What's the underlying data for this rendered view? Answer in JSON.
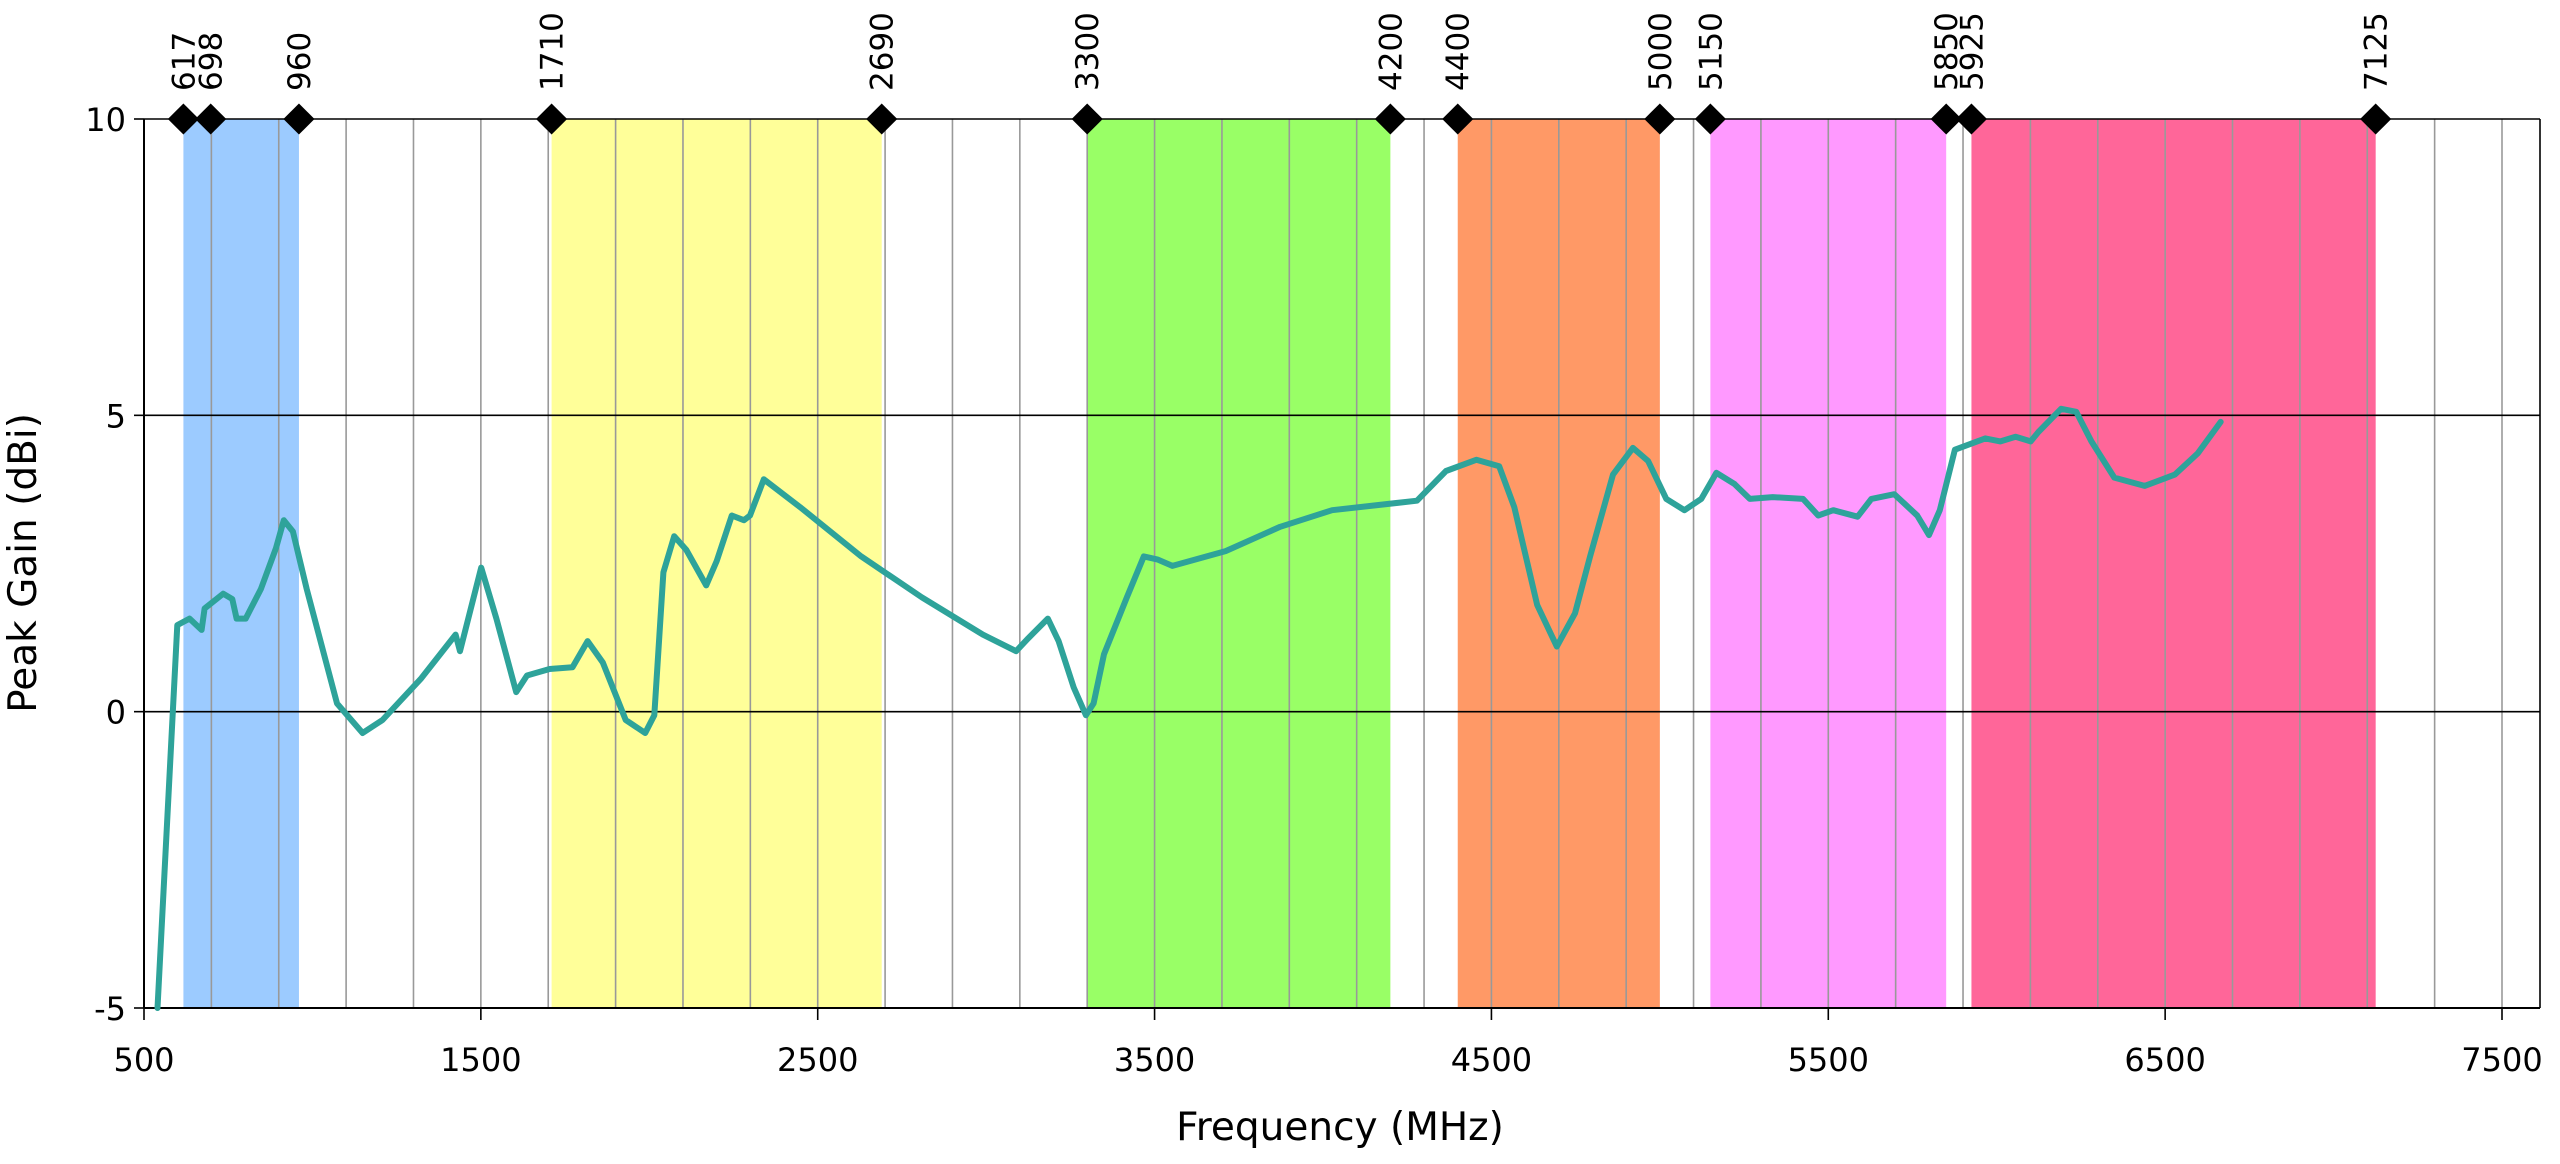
{
  "chart_data": {
    "type": "line",
    "xlabel": "Frequency (MHz)",
    "ylabel": "Peak Gain (dBi)",
    "xlim": [
      500,
      7500
    ],
    "xticks": [
      500,
      1500,
      2500,
      3500,
      4500,
      5500,
      6500,
      7500
    ],
    "ylim": [
      -5,
      10
    ],
    "yticks": [
      -5,
      0,
      5,
      10
    ],
    "grid": true,
    "x_minor_grid_step": 200,
    "bands": [
      {
        "start": 617,
        "end": 698,
        "color": "#9ccbff"
      },
      {
        "start": 698,
        "end": 960,
        "color": "#9ccbff"
      },
      {
        "start": 1710,
        "end": 2690,
        "color": "#ffff99"
      },
      {
        "start": 3300,
        "end": 4200,
        "color": "#99ff66"
      },
      {
        "start": 4400,
        "end": 5000,
        "color": "#ff9966"
      },
      {
        "start": 5150,
        "end": 5850,
        "color": "#ff99ff"
      },
      {
        "start": 5925,
        "end": 7125,
        "color": "#ff6699"
      }
    ],
    "x": [
      540,
      599,
      635,
      671,
      680,
      735,
      762,
      775,
      802,
      847,
      892,
      915,
      942,
      983,
      1073,
      1149,
      1208,
      1321,
      1425,
      1438,
      1501,
      1546,
      1605,
      1637,
      1704,
      1772,
      1817,
      1862,
      1930,
      1988,
      2015,
      2042,
      2074,
      2110,
      2169,
      2200,
      2245,
      2281,
      2299,
      2340,
      2448,
      2629,
      2809,
      2990,
      3089,
      3125,
      3183,
      3215,
      3260,
      3296,
      3319,
      3350,
      3418,
      3468,
      3508,
      3553,
      3711,
      3873,
      4027,
      4279,
      4365,
      4455,
      4523,
      4568,
      4636,
      4694,
      4748,
      4793,
      4861,
      4920,
      4965,
      5019,
      5073,
      5123,
      5168,
      5222,
      5267,
      5335,
      5425,
      5470,
      5515,
      5587,
      5628,
      5696,
      5764,
      5799,
      5831,
      5876,
      5966,
      6011,
      6056,
      6101,
      6124,
      6191,
      6236,
      6281,
      6349,
      6439,
      6529,
      6597,
      6665
    ],
    "series": [
      {
        "color": "#2ea39a",
        "values": [
          -5,
          1.46,
          1.57,
          1.38,
          1.74,
          1.99,
          1.9,
          1.57,
          1.57,
          2.07,
          2.76,
          3.23,
          3.04,
          2.07,
          0.14,
          -0.36,
          -0.14,
          0.55,
          1.3,
          1.02,
          2.43,
          1.57,
          0.33,
          0.61,
          0.72,
          0.75,
          1.19,
          0.83,
          -0.14,
          -0.36,
          -0.06,
          2.35,
          2.96,
          2.73,
          2.13,
          2.54,
          3.31,
          3.23,
          3.31,
          3.92,
          3.45,
          2.62,
          1.93,
          1.3,
          1.02,
          1.24,
          1.57,
          1.19,
          0.41,
          -0.06,
          0.14,
          0.97,
          1.93,
          2.62,
          2.57,
          2.46,
          2.71,
          3.12,
          3.4,
          3.56,
          4.06,
          4.25,
          4.14,
          3.45,
          1.8,
          1.1,
          1.66,
          2.62,
          4.0,
          4.45,
          4.23,
          3.59,
          3.4,
          3.59,
          4.03,
          3.84,
          3.59,
          3.62,
          3.59,
          3.31,
          3.4,
          3.29,
          3.59,
          3.67,
          3.31,
          2.98,
          3.4,
          4.42,
          4.61,
          4.56,
          4.64,
          4.56,
          4.72,
          5.11,
          5.06,
          4.56,
          3.95,
          3.81,
          4.0,
          4.36,
          4.89
        ]
      }
    ]
  }
}
